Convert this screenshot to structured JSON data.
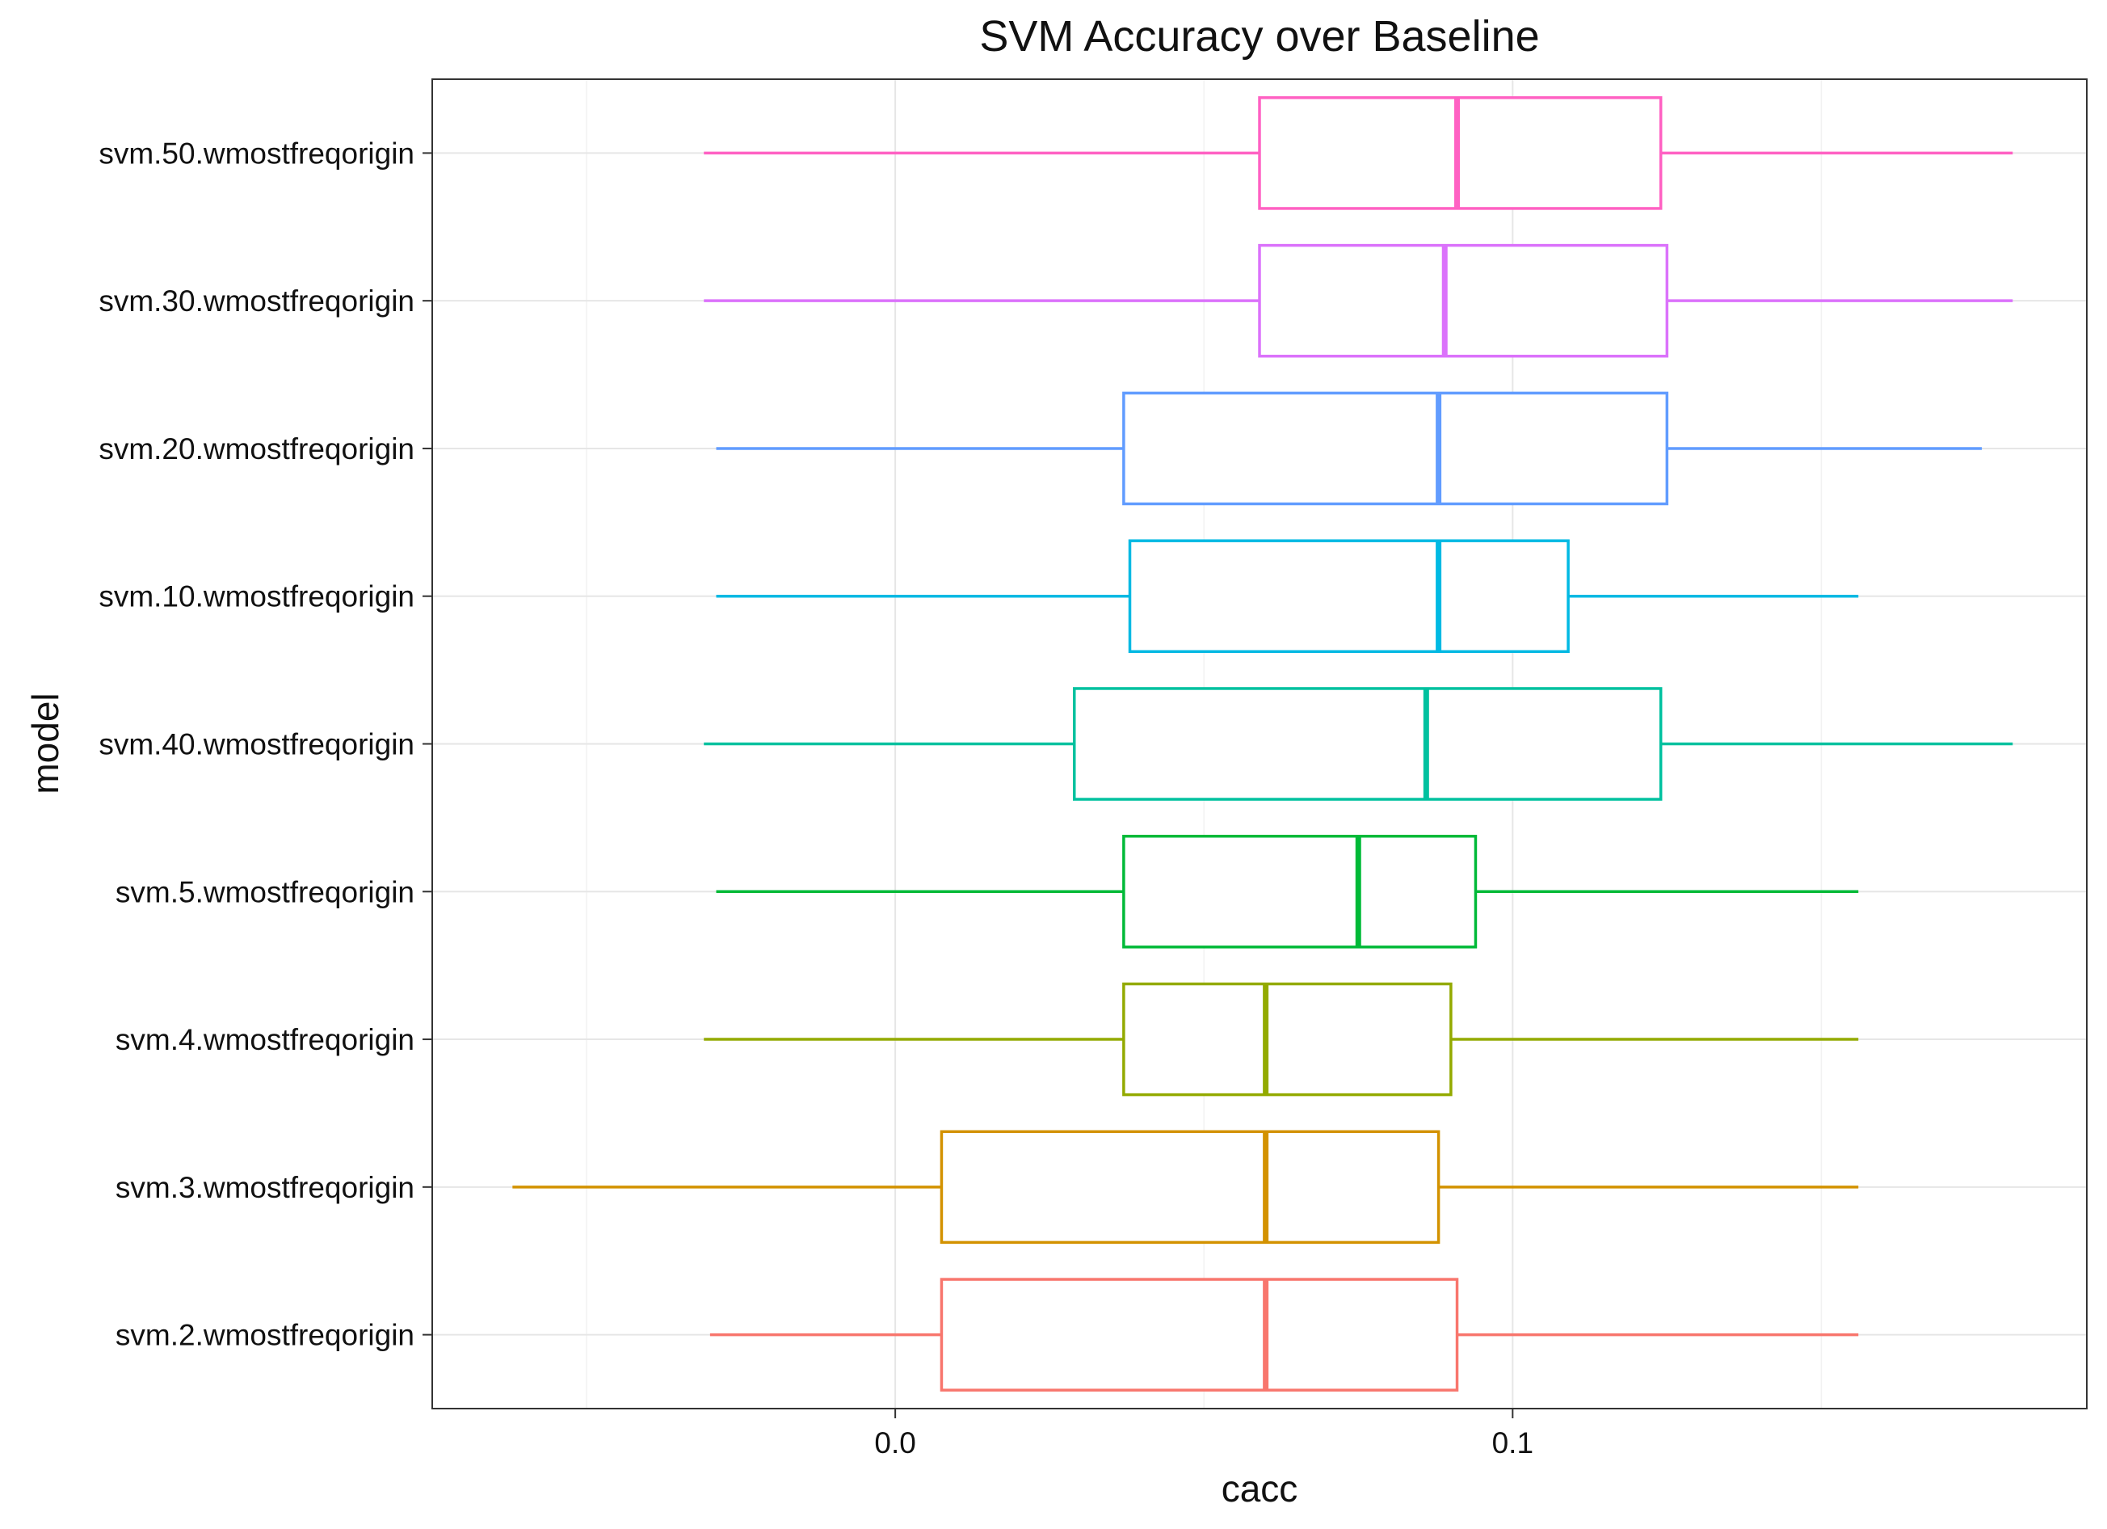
{
  "chart_data": {
    "type": "boxplot",
    "orientation": "horizontal",
    "title": "SVM Accuracy over Baseline",
    "xlabel": "cacc",
    "ylabel": "model",
    "xlim": [
      -0.075,
      0.193
    ],
    "xticks": [
      0.0,
      0.1
    ],
    "xtick_labels": [
      "0.0",
      "0.1"
    ],
    "grid": true,
    "legend": "none",
    "categories": [
      "svm.2.wmostfreqorigin",
      "svm.3.wmostfreqorigin",
      "svm.4.wmostfreqorigin",
      "svm.5.wmostfreqorigin",
      "svm.40.wmostfreqorigin",
      "svm.10.wmostfreqorigin",
      "svm.20.wmostfreqorigin",
      "svm.30.wmostfreqorigin",
      "svm.50.wmostfreqorigin"
    ],
    "boxes": [
      {
        "model": "svm.2.wmostfreqorigin",
        "whisker_low": -0.03,
        "q1": 0.0075,
        "median": 0.06,
        "q3": 0.091,
        "whisker_high": 0.156,
        "color": "#F8766D"
      },
      {
        "model": "svm.3.wmostfreqorigin",
        "whisker_low": -0.062,
        "q1": 0.0075,
        "median": 0.06,
        "q3": 0.088,
        "whisker_high": 0.156,
        "color": "#D39200"
      },
      {
        "model": "svm.4.wmostfreqorigin",
        "whisker_low": -0.031,
        "q1": 0.037,
        "median": 0.06,
        "q3": 0.09,
        "whisker_high": 0.156,
        "color": "#93AA00"
      },
      {
        "model": "svm.5.wmostfreqorigin",
        "whisker_low": -0.029,
        "q1": 0.037,
        "median": 0.075,
        "q3": 0.094,
        "whisker_high": 0.156,
        "color": "#00BA38"
      },
      {
        "model": "svm.40.wmostfreqorigin",
        "whisker_low": -0.031,
        "q1": 0.029,
        "median": 0.086,
        "q3": 0.124,
        "whisker_high": 0.181,
        "color": "#00C19F"
      },
      {
        "model": "svm.10.wmostfreqorigin",
        "whisker_low": -0.029,
        "q1": 0.038,
        "median": 0.088,
        "q3": 0.109,
        "whisker_high": 0.156,
        "color": "#00B9E3"
      },
      {
        "model": "svm.20.wmostfreqorigin",
        "whisker_low": -0.029,
        "q1": 0.037,
        "median": 0.088,
        "q3": 0.125,
        "whisker_high": 0.176,
        "color": "#619CFF"
      },
      {
        "model": "svm.30.wmostfreqorigin",
        "whisker_low": -0.031,
        "q1": 0.059,
        "median": 0.089,
        "q3": 0.125,
        "whisker_high": 0.181,
        "color": "#DB72FB"
      },
      {
        "model": "svm.50.wmostfreqorigin",
        "whisker_low": -0.031,
        "q1": 0.059,
        "median": 0.091,
        "q3": 0.124,
        "whisker_high": 0.181,
        "color": "#FF61C3"
      }
    ]
  }
}
